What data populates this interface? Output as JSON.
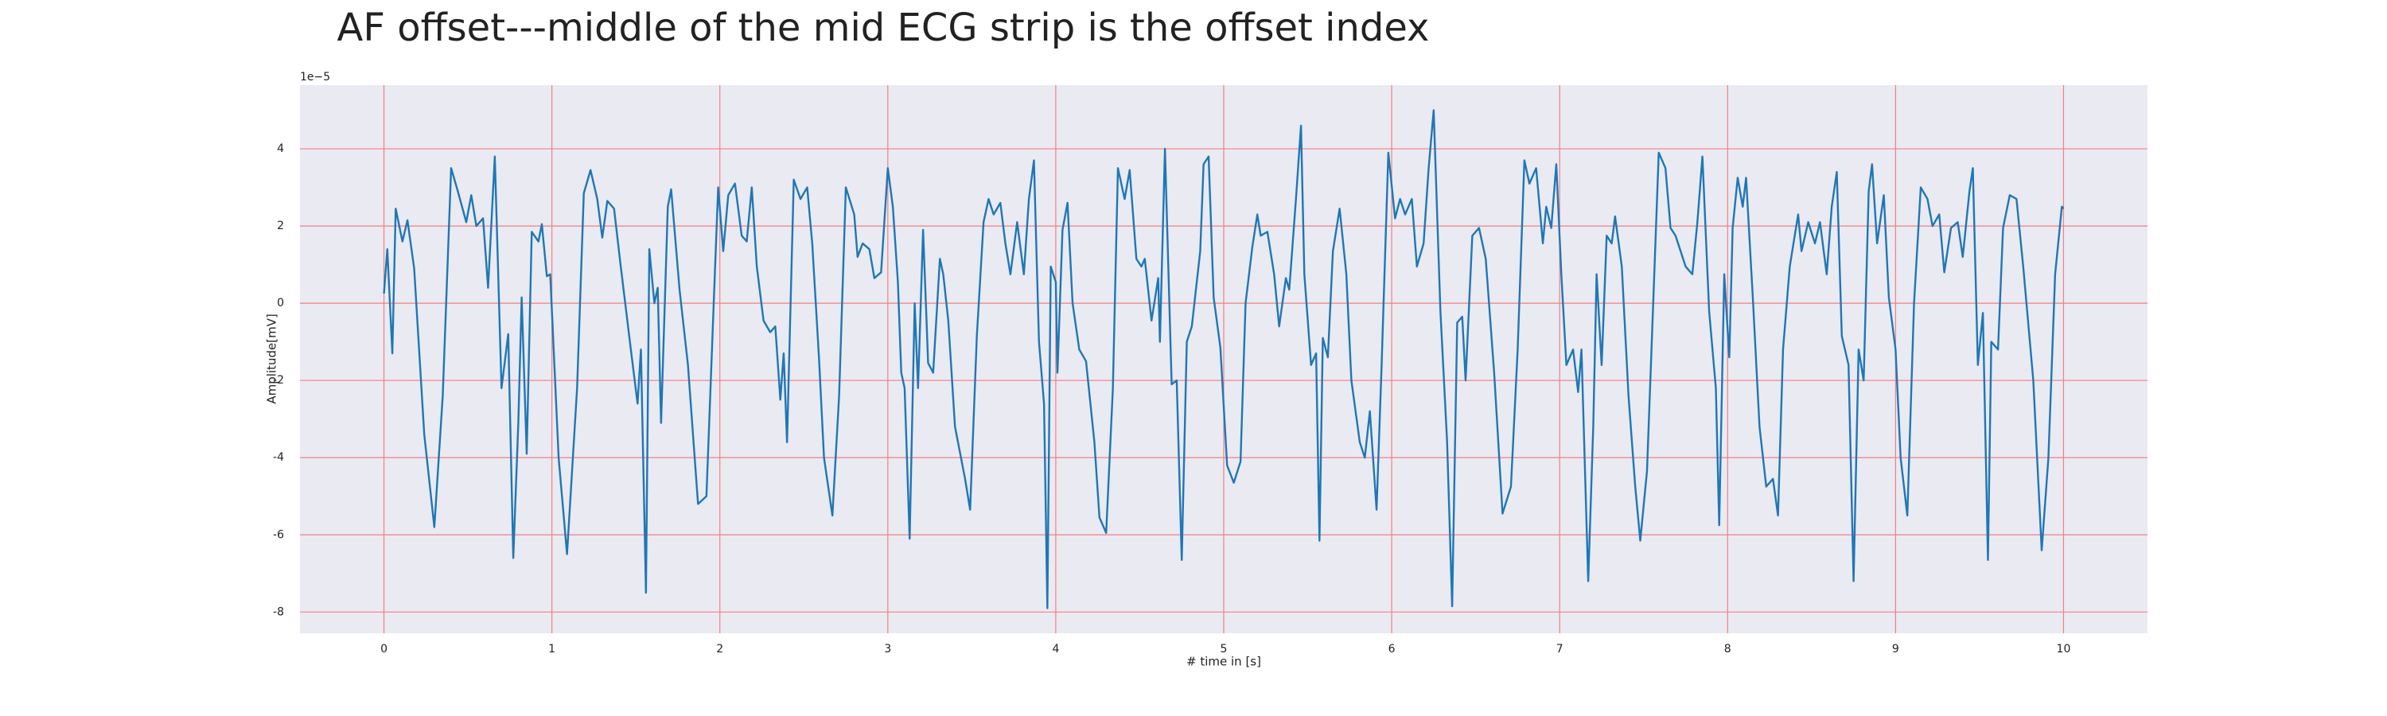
{
  "chart_data": {
    "type": "line",
    "title": "AF offset---middle of the mid ECG strip is the offset index",
    "x_label": "# time in [s]",
    "y_label": "Amplitude[mV]",
    "y_offset_text": "1e−5",
    "color": "#1f77b4",
    "grid": true,
    "xlim": [
      -0.5,
      10.5
    ],
    "ylim": [
      -8.55,
      5.65
    ],
    "xticks": [
      0,
      1,
      2,
      3,
      4,
      5,
      6,
      7,
      8,
      9,
      10
    ],
    "yticks": [
      -8,
      -6,
      -4,
      -2,
      0,
      2,
      4
    ],
    "x": [
      0,
      0.02,
      0.05,
      0.07,
      0.11,
      0.14,
      0.18,
      0.24,
      0.3,
      0.35,
      0.4,
      0.44,
      0.49,
      0.52,
      0.55,
      0.59,
      0.62,
      0.66,
      0.7,
      0.74,
      0.77,
      0.8,
      0.82,
      0.85,
      0.88,
      0.92,
      0.94,
      0.97,
      0.99,
      1.04,
      1.09,
      1.15,
      1.19,
      1.23,
      1.27,
      1.3,
      1.33,
      1.37,
      1.41,
      1.47,
      1.51,
      1.53,
      1.56,
      1.58,
      1.61,
      1.63,
      1.65,
      1.69,
      1.71,
      1.76,
      1.81,
      1.87,
      1.92,
      1.97,
      1.99,
      2.02,
      2.05,
      2.09,
      2.13,
      2.16,
      2.19,
      2.22,
      2.26,
      2.3,
      2.33,
      2.36,
      2.38,
      2.4,
      2.44,
      2.48,
      2.52,
      2.55,
      2.59,
      2.62,
      2.67,
      2.71,
      2.75,
      2.8,
      2.82,
      2.85,
      2.89,
      2.92,
      2.96,
      3.0,
      3.03,
      3.06,
      3.08,
      3.1,
      3.13,
      3.16,
      3.18,
      3.21,
      3.24,
      3.27,
      3.31,
      3.33,
      3.36,
      3.4,
      3.46,
      3.49,
      3.53,
      3.57,
      3.6,
      3.63,
      3.67,
      3.7,
      3.73,
      3.77,
      3.81,
      3.84,
      3.87,
      3.9,
      3.93,
      3.95,
      3.97,
      4.0,
      4.01,
      4.04,
      4.07,
      4.1,
      4.14,
      4.18,
      4.23,
      4.26,
      4.3,
      4.34,
      4.37,
      4.41,
      4.44,
      4.48,
      4.51,
      4.53,
      4.57,
      4.61,
      4.62,
      4.65,
      4.69,
      4.72,
      4.75,
      4.78,
      4.81,
      4.86,
      4.88,
      4.91,
      4.94,
      4.98,
      5.02,
      5.06,
      5.1,
      5.13,
      5.17,
      5.2,
      5.22,
      5.26,
      5.3,
      5.33,
      5.37,
      5.39,
      5.43,
      5.46,
      5.48,
      5.52,
      5.55,
      5.57,
      5.59,
      5.62,
      5.65,
      5.69,
      5.73,
      5.76,
      5.81,
      5.84,
      5.87,
      5.91,
      5.94,
      5.98,
      6.02,
      6.05,
      6.08,
      6.12,
      6.15,
      6.19,
      6.22,
      6.25,
      6.29,
      6.33,
      6.36,
      6.39,
      6.42,
      6.44,
      6.48,
      6.52,
      6.56,
      6.61,
      6.66,
      6.71,
      6.75,
      6.79,
      6.82,
      6.86,
      6.9,
      6.92,
      6.95,
      6.98,
      7.01,
      7.04,
      7.08,
      7.11,
      7.13,
      7.17,
      7.2,
      7.22,
      7.25,
      7.28,
      7.31,
      7.33,
      7.37,
      7.41,
      7.45,
      7.48,
      7.52,
      7.56,
      7.59,
      7.63,
      7.66,
      7.69,
      7.72,
      7.75,
      7.79,
      7.82,
      7.85,
      7.89,
      7.93,
      7.95,
      7.98,
      8.01,
      8.03,
      8.06,
      8.09,
      8.11,
      8.15,
      8.19,
      8.23,
      8.27,
      8.3,
      8.33,
      8.37,
      8.42,
      8.44,
      8.48,
      8.52,
      8.55,
      8.59,
      8.62,
      8.65,
      8.68,
      8.72,
      8.75,
      8.78,
      8.81,
      8.84,
      8.86,
      8.89,
      8.93,
      8.96,
      9.0,
      9.03,
      9.07,
      9.11,
      9.15,
      9.19,
      9.22,
      9.26,
      9.29,
      9.33,
      9.37,
      9.4,
      9.44,
      9.46,
      9.49,
      9.52,
      9.55,
      9.57,
      9.61,
      9.64,
      9.68,
      9.72,
      9.76,
      9.82,
      9.87,
      9.91,
      9.95,
      9.99,
      10.0
    ],
    "values": [
      0.25,
      1.4,
      -1.3,
      2.45,
      1.6,
      2.15,
      0.9,
      -3.4,
      -5.8,
      -2.4,
      3.5,
      2.9,
      2.1,
      2.8,
      2.0,
      2.2,
      0.4,
      3.8,
      -2.2,
      -0.8,
      -6.6,
      -3.1,
      0.15,
      -3.9,
      1.85,
      1.6,
      2.05,
      0.7,
      0.75,
      -4,
      -6.5,
      -2.2,
      2.85,
      3.45,
      2.7,
      1.7,
      2.65,
      2.45,
      0.95,
      -1.2,
      -2.6,
      -1.2,
      -7.5,
      1.4,
      0,
      0.4,
      -3.1,
      2.5,
      2.95,
      0.35,
      -1.6,
      -5.2,
      -5,
      0.75,
      3.0,
      1.35,
      2.8,
      3.1,
      1.75,
      1.6,
      3.0,
      0.95,
      -0.45,
      -0.75,
      -0.6,
      -2.5,
      -1.3,
      -3.6,
      3.2,
      2.7,
      3.0,
      1.55,
      -1.4,
      -4,
      -5.5,
      -2.4,
      3.0,
      2.3,
      1.2,
      1.55,
      1.4,
      0.65,
      0.8,
      3.5,
      2.5,
      0.55,
      -1.8,
      -2.2,
      -6.1,
      0,
      -2.2,
      1.9,
      -1.55,
      -1.8,
      1.15,
      0.75,
      -0.45,
      -3.2,
      -4.55,
      -5.35,
      -0.85,
      2.1,
      2.7,
      2.3,
      2.6,
      1.55,
      0.75,
      2.1,
      0.75,
      2.7,
      3.7,
      -1.0,
      -2.6,
      -7.9,
      0.95,
      0.55,
      -1.8,
      1.9,
      2.6,
      0,
      -1.2,
      -1.5,
      -3.6,
      -5.55,
      -5.95,
      -2.2,
      3.5,
      2.7,
      3.45,
      1.15,
      0.95,
      1.15,
      -0.45,
      0.65,
      -1.0,
      4.0,
      -2.1,
      -2.0,
      -6.65,
      -1.0,
      -0.6,
      1.35,
      3.6,
      3.8,
      0.15,
      -1.15,
      -4.2,
      -4.65,
      -4.1,
      0,
      1.45,
      2.3,
      1.75,
      1.85,
      0.75,
      -0.6,
      0.65,
      0.35,
      2.7,
      4.6,
      0.75,
      -1.6,
      -1.3,
      -6.15,
      -0.9,
      -1.4,
      1.35,
      2.45,
      0.75,
      -2.0,
      -3.6,
      -4,
      -2.8,
      -5.35,
      -1.6,
      3.9,
      2.2,
      2.7,
      2.3,
      2.7,
      0.95,
      1.55,
      3.5,
      5.0,
      -0.2,
      -3.6,
      -7.85,
      -0.5,
      -0.35,
      -2.0,
      1.75,
      1.95,
      1.15,
      -1.8,
      -5.45,
      -4.75,
      -1.2,
      3.7,
      3.1,
      3.5,
      1.55,
      2.5,
      1.95,
      3.6,
      0.75,
      -1.6,
      -1.2,
      -2.3,
      -1.2,
      -7.2,
      -3.2,
      0.75,
      -1.6,
      1.75,
      1.55,
      2.25,
      0.95,
      -2.4,
      -4.75,
      -6.15,
      -4.35,
      0.35,
      3.9,
      3.5,
      1.95,
      1.75,
      1.35,
      0.95,
      0.75,
      2.1,
      3.8,
      -0.2,
      -2.2,
      -5.75,
      0.75,
      -1.4,
      1.95,
      3.25,
      2.5,
      3.25,
      0.15,
      -3.2,
      -4.75,
      -4.55,
      -5.5,
      -1.2,
      0.95,
      2.3,
      1.35,
      2.1,
      1.55,
      2.1,
      0.75,
      2.5,
      3.4,
      -0.85,
      -1.6,
      -7.2,
      -1.2,
      -2.0,
      2.9,
      3.6,
      1.55,
      2.8,
      0.15,
      -1.2,
      -4.0,
      -5.5,
      0,
      3.0,
      2.7,
      2.0,
      2.3,
      0.8,
      1.95,
      2.1,
      1.2,
      2.9,
      3.5,
      -1.6,
      -0.25,
      -6.65,
      -1.0,
      -1.2,
      1.95,
      2.8,
      2.7,
      0.95,
      -2.0,
      -6.4,
      -4.0,
      0.75,
      2.5,
      2.45
    ]
  }
}
